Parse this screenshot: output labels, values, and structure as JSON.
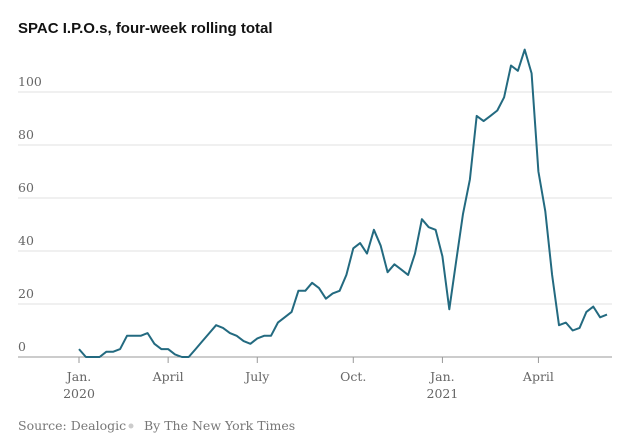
{
  "chart_data": {
    "type": "line",
    "title": "SPAC I.P.O.s, four-week rolling total",
    "source": "Source: Dealogic",
    "credit": "By The New York Times",
    "categories": [
      "Jan.\n2020",
      null,
      null,
      null,
      null,
      null,
      null,
      null,
      null,
      null,
      null,
      null,
      null,
      "April",
      null,
      null,
      null,
      null,
      null,
      null,
      null,
      null,
      null,
      null,
      null,
      null,
      "July",
      null,
      null,
      null,
      null,
      null,
      null,
      null,
      null,
      null,
      null,
      null,
      null,
      null,
      "Oct.",
      null,
      null,
      null,
      null,
      null,
      null,
      null,
      null,
      null,
      null,
      null,
      null,
      "Jan.\n2021",
      null,
      null,
      null,
      null,
      null,
      null,
      null,
      null,
      null,
      null,
      null,
      null,
      null,
      "April",
      null,
      null,
      null,
      null,
      null,
      null,
      null,
      null,
      null,
      null
    ],
    "series": [
      {
        "name": "SPAC I.P.O.s",
        "color": "#236a80",
        "values": [
          3,
          0,
          0,
          0,
          2,
          2,
          3,
          8,
          8,
          8,
          9,
          5,
          3,
          3,
          1,
          0,
          0,
          3,
          6,
          9,
          12,
          11,
          9,
          8,
          6,
          5,
          7,
          8,
          8,
          13,
          15,
          17,
          25,
          25,
          28,
          26,
          22,
          24,
          25,
          31,
          41,
          43,
          39,
          48,
          42,
          32,
          35,
          33,
          31,
          39,
          52,
          49,
          48,
          38,
          18,
          36,
          54,
          67,
          91,
          89,
          91,
          93,
          98,
          110,
          108,
          116,
          107,
          70,
          55,
          31,
          12,
          13,
          10,
          11,
          17,
          19,
          15,
          16
        ]
      }
    ],
    "ylim": [
      0,
      120
    ],
    "yticks": [
      0,
      20,
      40,
      60,
      80,
      100
    ],
    "grid": true
  }
}
